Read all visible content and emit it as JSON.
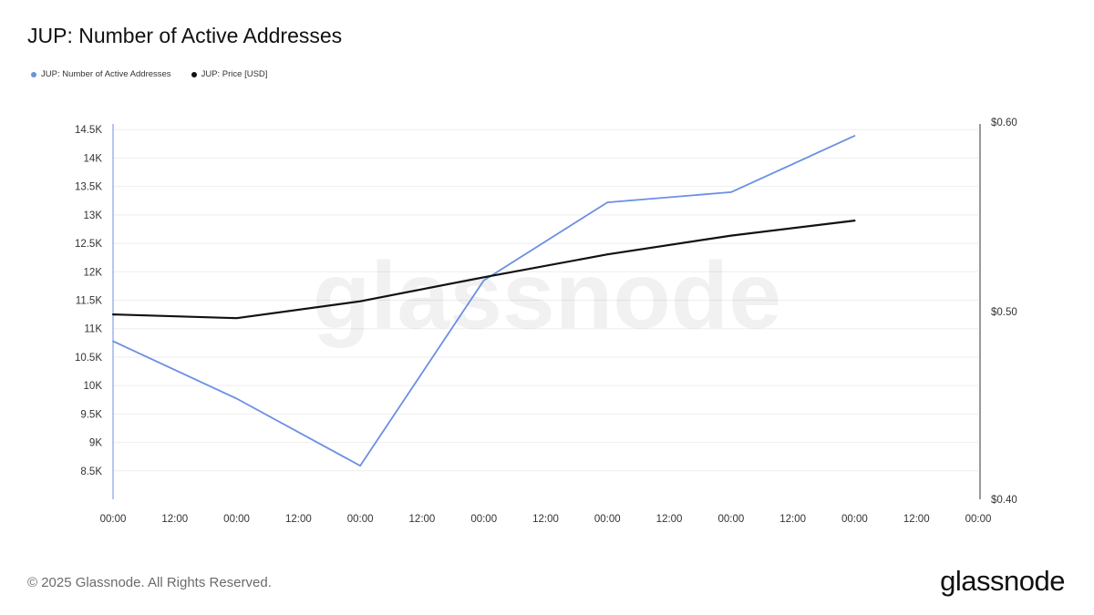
{
  "title": "JUP: Number of Active Addresses",
  "footer": "© 2025 Glassnode. All Rights Reserved.",
  "logo_text": "glassnode",
  "watermark_text": "glassnode",
  "colors": {
    "addresses": "#6b8fe3",
    "price": "#111111",
    "grid": "#eeeeee"
  },
  "legend": [
    {
      "label": "JUP: Number of Active Addresses",
      "color": "#6b8fe3"
    },
    {
      "label": "JUP: Price [USD]",
      "color": "#111111"
    }
  ],
  "chart_data": {
    "type": "line",
    "title": "JUP: Number of Active Addresses",
    "grid": true,
    "legend_position": "top-left",
    "x_ticks": [
      "00:00",
      "12:00",
      "00:00",
      "12:00",
      "00:00",
      "12:00",
      "00:00",
      "12:00",
      "00:00",
      "12:00",
      "00:00",
      "12:00",
      "00:00",
      "12:00",
      "00:00"
    ],
    "x_range_hours": [
      0,
      168
    ],
    "y_left": {
      "ticks": [
        "8.5K",
        "9K",
        "9.5K",
        "10K",
        "10.5K",
        "11K",
        "11.5K",
        "12K",
        "12.5K",
        "13K",
        "13.5K",
        "14K",
        "14.5K"
      ],
      "tick_values": [
        8500,
        9000,
        9500,
        10000,
        10500,
        11000,
        11500,
        12000,
        12500,
        13000,
        13500,
        14000,
        14500
      ],
      "range": [
        8000,
        14600
      ]
    },
    "y_right": {
      "ticks": [
        "$0.40",
        "$0.50",
        "$0.60"
      ],
      "tick_values": [
        0.4,
        0.5,
        0.6
      ],
      "range": [
        0.4,
        0.6
      ]
    },
    "series": [
      {
        "name": "JUP: Number of Active Addresses",
        "axis": "left",
        "x_hours": [
          0,
          24,
          48,
          72,
          96,
          120,
          144
        ],
        "values": [
          10780,
          9770,
          8590,
          11850,
          13220,
          13400,
          14390
        ]
      },
      {
        "name": "JUP: Price [USD]",
        "axis": "right",
        "x_hours": [
          0,
          24,
          48,
          72,
          96,
          120,
          144
        ],
        "values": [
          0.4985,
          0.4965,
          0.5055,
          0.5183,
          0.5305,
          0.5405,
          0.5485
        ]
      }
    ]
  }
}
